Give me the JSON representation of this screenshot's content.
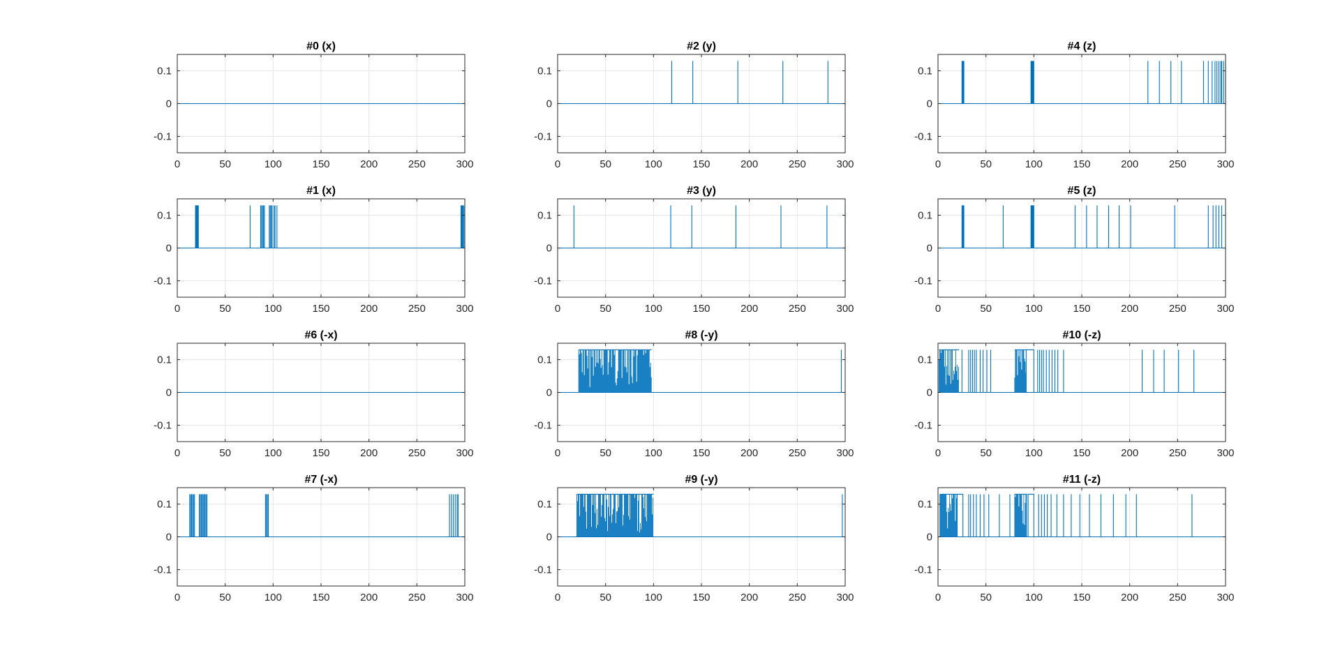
{
  "figure": {
    "background": "#ffffff",
    "line_color": "#0072BD",
    "grid_color": "#e6e6e6",
    "axes_color": "#262626"
  },
  "chart_data": [
    {
      "type": "line",
      "title": "#0 (x)",
      "xlim": [
        0,
        300
      ],
      "ylim": [
        -0.15,
        0.15
      ],
      "xticks": [
        0,
        50,
        100,
        150,
        200,
        250,
        300
      ],
      "yticks": [
        0.1,
        0,
        -0.1
      ],
      "ytick_labels": [
        "0.1",
        "0",
        "-0.1"
      ],
      "grid": true,
      "baseline": 0,
      "pulse_height": 0.13,
      "pulses": []
    },
    {
      "type": "line",
      "title": "#2 (y)",
      "xlim": [
        0,
        300
      ],
      "ylim": [
        -0.15,
        0.15
      ],
      "xticks": [
        0,
        50,
        100,
        150,
        200,
        250,
        300
      ],
      "yticks": [
        0.1,
        0,
        -0.1
      ],
      "ytick_labels": [
        "0.1",
        "0",
        "-0.1"
      ],
      "grid": true,
      "baseline": 0,
      "pulse_height": 0.13,
      "pulses": [
        119,
        141,
        188,
        235,
        282
      ]
    },
    {
      "type": "line",
      "title": "#4 (z)",
      "xlim": [
        0,
        300
      ],
      "ylim": [
        -0.15,
        0.15
      ],
      "xticks": [
        0,
        50,
        100,
        150,
        200,
        250,
        300
      ],
      "yticks": [
        0.1,
        0,
        -0.1
      ],
      "ytick_labels": [
        "0.1",
        "0",
        "-0.1"
      ],
      "grid": true,
      "baseline": 0,
      "pulse_height": 0.13,
      "pulses": [
        25,
        25.5,
        26,
        26.5,
        27,
        97,
        97.5,
        98,
        98.5,
        99,
        99.5,
        100,
        219,
        231,
        243,
        254,
        277,
        282,
        286,
        289,
        291,
        293,
        295,
        296,
        298,
        300
      ]
    },
    {
      "type": "line",
      "title": "#1 (x)",
      "xlim": [
        0,
        300
      ],
      "ylim": [
        -0.15,
        0.15
      ],
      "xticks": [
        0,
        50,
        100,
        150,
        200,
        250,
        300
      ],
      "yticks": [
        0.1,
        0,
        -0.1
      ],
      "ytick_labels": [
        "0.1",
        "0",
        "-0.1"
      ],
      "grid": true,
      "baseline": 0,
      "pulse_height": 0.13,
      "pulses": [
        19,
        19.5,
        20,
        20.5,
        21,
        21.5,
        22,
        76,
        87,
        88,
        89,
        90,
        91,
        96,
        97,
        98,
        99,
        101,
        102,
        104,
        296,
        296.5,
        297,
        297.5,
        298,
        299
      ]
    },
    {
      "type": "line",
      "title": "#3 (y)",
      "xlim": [
        0,
        300
      ],
      "ylim": [
        -0.15,
        0.15
      ],
      "xticks": [
        0,
        50,
        100,
        150,
        200,
        250,
        300
      ],
      "yticks": [
        0.1,
        0,
        -0.1
      ],
      "ytick_labels": [
        "0.1",
        "0",
        "-0.1"
      ],
      "grid": true,
      "baseline": 0,
      "pulse_height": 0.13,
      "pulses": [
        17,
        118,
        140,
        186,
        233,
        281,
        300
      ]
    },
    {
      "type": "line",
      "title": "#5 (z)",
      "xlim": [
        0,
        300
      ],
      "ylim": [
        -0.15,
        0.15
      ],
      "xticks": [
        0,
        50,
        100,
        150,
        200,
        250,
        300
      ],
      "yticks": [
        0.1,
        0,
        -0.1
      ],
      "ytick_labels": [
        "0.1",
        "0",
        "-0.1"
      ],
      "grid": true,
      "baseline": 0,
      "pulse_height": 0.13,
      "pulses": [
        25,
        25.5,
        26,
        26.5,
        27,
        68,
        97,
        97.5,
        98,
        98.5,
        99,
        99.5,
        100,
        143,
        155,
        166,
        178,
        189,
        201,
        247,
        282,
        287,
        290,
        293,
        296
      ]
    },
    {
      "type": "line",
      "title": "#6 (-x)",
      "xlim": [
        0,
        300
      ],
      "ylim": [
        -0.15,
        0.15
      ],
      "xticks": [
        0,
        50,
        100,
        150,
        200,
        250,
        300
      ],
      "yticks": [
        0.1,
        0,
        -0.1
      ],
      "ytick_labels": [
        "0.1",
        "0",
        "-0.1"
      ],
      "grid": true,
      "baseline": 0,
      "pulse_height": 0.13,
      "pulses": []
    },
    {
      "type": "line",
      "title": "#8 (-y)",
      "xlim": [
        0,
        300
      ],
      "ylim": [
        -0.15,
        0.15
      ],
      "xticks": [
        0,
        50,
        100,
        150,
        200,
        250,
        300
      ],
      "yticks": [
        0.1,
        0,
        -0.1
      ],
      "ytick_labels": [
        "0.1",
        "0",
        "-0.1"
      ],
      "grid": true,
      "baseline": 0,
      "pulse_height": 0.13,
      "dense_ranges": [
        [
          22,
          98
        ]
      ],
      "pulses": [
        296
      ]
    },
    {
      "type": "line",
      "title": "#10 (-z)",
      "xlim": [
        0,
        300
      ],
      "ylim": [
        -0.15,
        0.15
      ],
      "xticks": [
        0,
        50,
        100,
        150,
        200,
        250,
        300
      ],
      "yticks": [
        0.1,
        0,
        -0.1
      ],
      "ytick_labels": [
        "0.1",
        "0",
        "-0.1"
      ],
      "grid": true,
      "baseline": 0,
      "pulse_height": 0.13,
      "dense_ranges": [
        [
          1,
          22
        ],
        [
          80,
          92
        ]
      ],
      "plateaus": [
        [
          92,
          100
        ]
      ],
      "pulses": [
        25,
        32,
        34,
        36,
        38,
        40,
        44,
        47,
        51,
        55,
        104,
        106,
        108,
        110,
        113,
        116,
        119,
        122,
        125,
        131,
        213,
        225,
        236,
        251,
        267
      ]
    },
    {
      "type": "line",
      "title": "#7 (-x)",
      "xlim": [
        0,
        300
      ],
      "ylim": [
        -0.15,
        0.15
      ],
      "xticks": [
        0,
        50,
        100,
        150,
        200,
        250,
        300
      ],
      "yticks": [
        0.1,
        0,
        -0.1
      ],
      "ytick_labels": [
        "0.1",
        "0",
        "-0.1"
      ],
      "grid": true,
      "baseline": 0,
      "pulse_height": 0.13,
      "pulses": [
        13,
        14,
        15,
        16,
        17,
        18,
        23,
        24,
        25,
        26,
        27,
        28,
        29,
        30,
        31,
        92,
        93,
        94,
        95,
        284,
        286,
        288,
        290,
        292,
        293
      ]
    },
    {
      "type": "line",
      "title": "#9 (-y)",
      "xlim": [
        0,
        300
      ],
      "ylim": [
        -0.15,
        0.15
      ],
      "xticks": [
        0,
        50,
        100,
        150,
        200,
        250,
        300
      ],
      "yticks": [
        0.1,
        0,
        -0.1
      ],
      "ytick_labels": [
        "0.1",
        "0",
        "-0.1"
      ],
      "grid": true,
      "baseline": 0,
      "pulse_height": 0.13,
      "dense_ranges": [
        [
          20,
          100
        ]
      ],
      "pulses": [
        297
      ]
    },
    {
      "type": "line",
      "title": "#11 (-z)",
      "xlim": [
        0,
        300
      ],
      "ylim": [
        -0.15,
        0.15
      ],
      "xticks": [
        0,
        50,
        100,
        150,
        200,
        250,
        300
      ],
      "yticks": [
        0.1,
        0,
        -0.1
      ],
      "ytick_labels": [
        "0.1",
        "0",
        "-0.1"
      ],
      "grid": true,
      "baseline": 0,
      "pulse_height": 0.13,
      "dense_ranges": [
        [
          2,
          20
        ],
        [
          80,
          93
        ]
      ],
      "plateaus": [
        [
          20,
          26
        ],
        [
          94,
          100
        ]
      ],
      "pulses": [
        32,
        34,
        37,
        40,
        44,
        48,
        53,
        64,
        75,
        105,
        108,
        111,
        114,
        118,
        124,
        131,
        139,
        148,
        158,
        170,
        183,
        196,
        207,
        265
      ]
    }
  ]
}
